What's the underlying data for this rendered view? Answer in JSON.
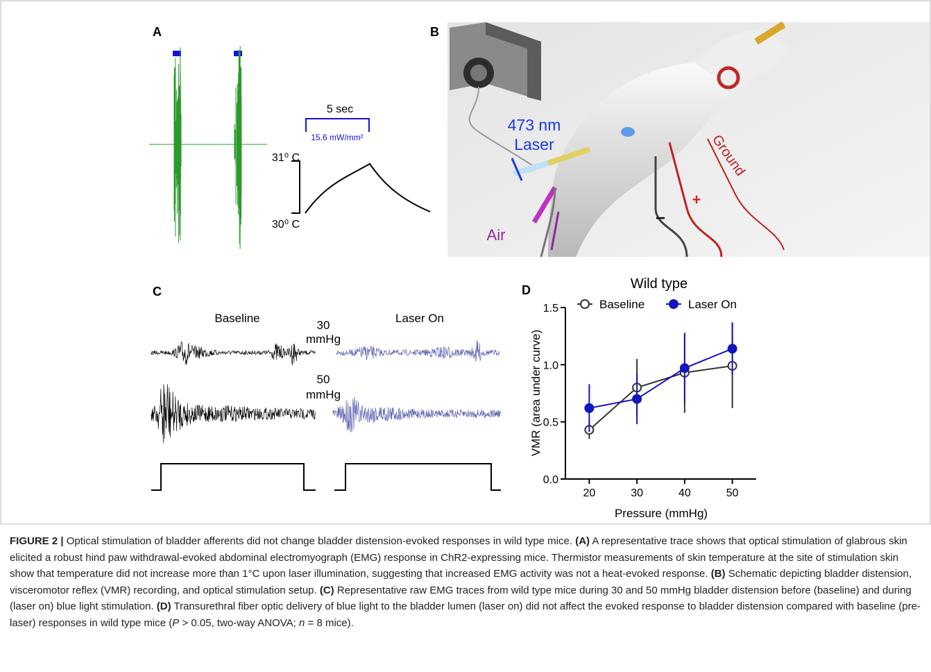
{
  "figure": {
    "panel_a": {
      "label": "A",
      "time_scale": "5 sec",
      "intensity": "15.6 mW/mm²",
      "temp_high": "31⁰ C",
      "temp_low": "30⁰ C"
    },
    "panel_b": {
      "label": "B",
      "wavelength": "473 nm",
      "laser": "Laser",
      "air": "Air",
      "ground": "Ground",
      "plus": "+",
      "minus": "−"
    },
    "panel_c": {
      "label": "C",
      "baseline": "Baseline",
      "laser_on": "Laser On",
      "pressure_1": "30",
      "unit_1": "mmHg",
      "pressure_2": "50",
      "unit_2": "mmHg"
    },
    "panel_d_label": "D"
  },
  "chart_data": {
    "type": "line",
    "title": "Wild type",
    "x_label": "Pressure (mmHg)",
    "y_label": "VMR (area under curve)",
    "x": [
      20,
      30,
      40,
      50
    ],
    "series": [
      {
        "name": "Baseline",
        "color": "#333333",
        "marker": "open",
        "values": [
          0.43,
          0.8,
          0.93,
          0.99
        ],
        "errors": [
          0.08,
          0.25,
          0.35,
          0.37
        ]
      },
      {
        "name": "Laser On",
        "color": "#1515c0",
        "marker": "filled",
        "values": [
          0.62,
          0.7,
          0.97,
          1.14
        ],
        "errors": [
          0.21,
          0.22,
          0.3,
          0.23
        ]
      }
    ],
    "xlim": [
      15,
      55
    ],
    "ylim": [
      0,
      1.5
    ],
    "xticks": [
      20,
      30,
      40,
      50
    ],
    "yticks": [
      {
        "value": 0,
        "label": "0.0"
      },
      {
        "value": 0.5,
        "label": "0.5"
      },
      {
        "value": 1,
        "label": "1.0"
      },
      {
        "value": 1.5,
        "label": "1.5"
      }
    ],
    "legend": "top"
  },
  "caption": {
    "parts": [
      "FIGURE 2 |",
      " Optical stimulation of bladder afferents did not change bladder distension-evoked responses in wild type mice. ",
      "(A)",
      " A representative trace shows that optical stimulation of glabrous skin elicited a robust hind paw withdrawal-evoked abdominal electromyograph (EMG) response in ChR2-expressing mice. Thermistor measurements of skin temperature at the site of stimulation skin show that temperature did not increase more than 1°C upon laser illumination, suggesting that increased EMG activity was not a heat-evoked response. ",
      "(B)",
      " Schematic depicting bladder distension, visceromotor reflex (VMR) recording, and optical stimulation setup. ",
      "(C)",
      " Representative raw EMG traces from wild type mice during 30 and 50 mmHg bladder distension before (baseline) and during (laser on) blue light stimulation. ",
      "(D)",
      " Transurethral fiber optic delivery of blue light to the bladder lumen (laser on) did not affect the evoked response to bladder distension compared with baseline (pre-laser) responses in wild type mice (",
      "P",
      " > 0.05, two-way ANOVA; ",
      "n",
      " = 8 mice)."
    ]
  }
}
